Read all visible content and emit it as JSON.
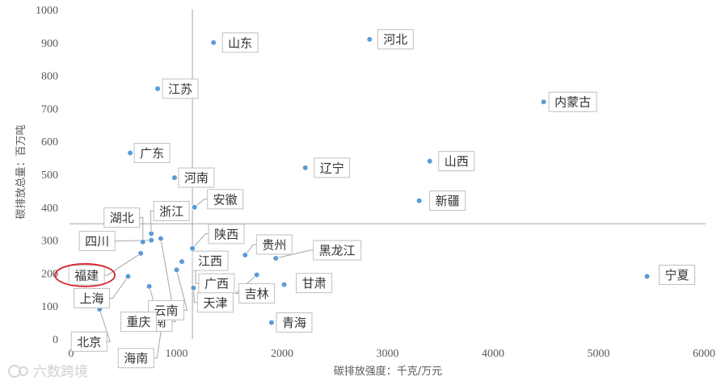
{
  "chart_data": {
    "type": "scatter",
    "title": "",
    "xlabel": "碳排放强度：千克/万元",
    "ylabel": "碳排放总量：百万吨",
    "xlim": [
      0,
      6000
    ],
    "ylim": [
      0,
      1000
    ],
    "x_ticks": [
      "0",
      "1000",
      "2000",
      "3000",
      "4000",
      "5000",
      "6000"
    ],
    "y_ticks": [
      "0",
      "100",
      "200",
      "300",
      "400",
      "500",
      "600",
      "700",
      "800",
      "900",
      "1000"
    ],
    "grid": false,
    "reference_lines": {
      "x": 1150,
      "y": 350
    },
    "highlight_color": "#d9262b",
    "point_color": "#5b9bd5",
    "points": [
      {
        "name": "山东",
        "x": 1350,
        "y": 900
      },
      {
        "name": "河北",
        "x": 2830,
        "y": 910
      },
      {
        "name": "江苏",
        "x": 820,
        "y": 760
      },
      {
        "name": "内蒙古",
        "x": 4480,
        "y": 720
      },
      {
        "name": "广东",
        "x": 560,
        "y": 565
      },
      {
        "name": "山西",
        "x": 3400,
        "y": 540
      },
      {
        "name": "辽宁",
        "x": 2220,
        "y": 520
      },
      {
        "name": "河南",
        "x": 980,
        "y": 490
      },
      {
        "name": "新疆",
        "x": 3300,
        "y": 420
      },
      {
        "name": "安徽",
        "x": 1170,
        "y": 400
      },
      {
        "name": "浙江",
        "x": 760,
        "y": 320
      },
      {
        "name": "湖北",
        "x": 680,
        "y": 295
      },
      {
        "name": "四川",
        "x": 760,
        "y": 300
      },
      {
        "name": "陕西",
        "x": 1150,
        "y": 275
      },
      {
        "name": "贵州",
        "x": 1650,
        "y": 255
      },
      {
        "name": "黑龙江",
        "x": 1940,
        "y": 245
      },
      {
        "name": "福建",
        "x": 660,
        "y": 260
      },
      {
        "name": "湖南",
        "x": 850,
        "y": 305
      },
      {
        "name": "江西",
        "x": 1050,
        "y": 235
      },
      {
        "name": "广西",
        "x": 1180,
        "y": 230
      },
      {
        "name": "云南",
        "x": 1000,
        "y": 210
      },
      {
        "name": "吉林",
        "x": 1760,
        "y": 195
      },
      {
        "name": "宁夏",
        "x": 5460,
        "y": 190
      },
      {
        "name": "上海",
        "x": 540,
        "y": 190
      },
      {
        "name": "甘肃",
        "x": 2020,
        "y": 165
      },
      {
        "name": "重庆",
        "x": 740,
        "y": 160
      },
      {
        "name": "天津",
        "x": 1160,
        "y": 155
      },
      {
        "name": "北京",
        "x": 270,
        "y": 90
      },
      {
        "name": "青海",
        "x": 1900,
        "y": 50
      },
      {
        "name": "海南",
        "x": 860,
        "y": 40
      }
    ],
    "highlighted": "福建"
  },
  "watermark": "六数跨境"
}
